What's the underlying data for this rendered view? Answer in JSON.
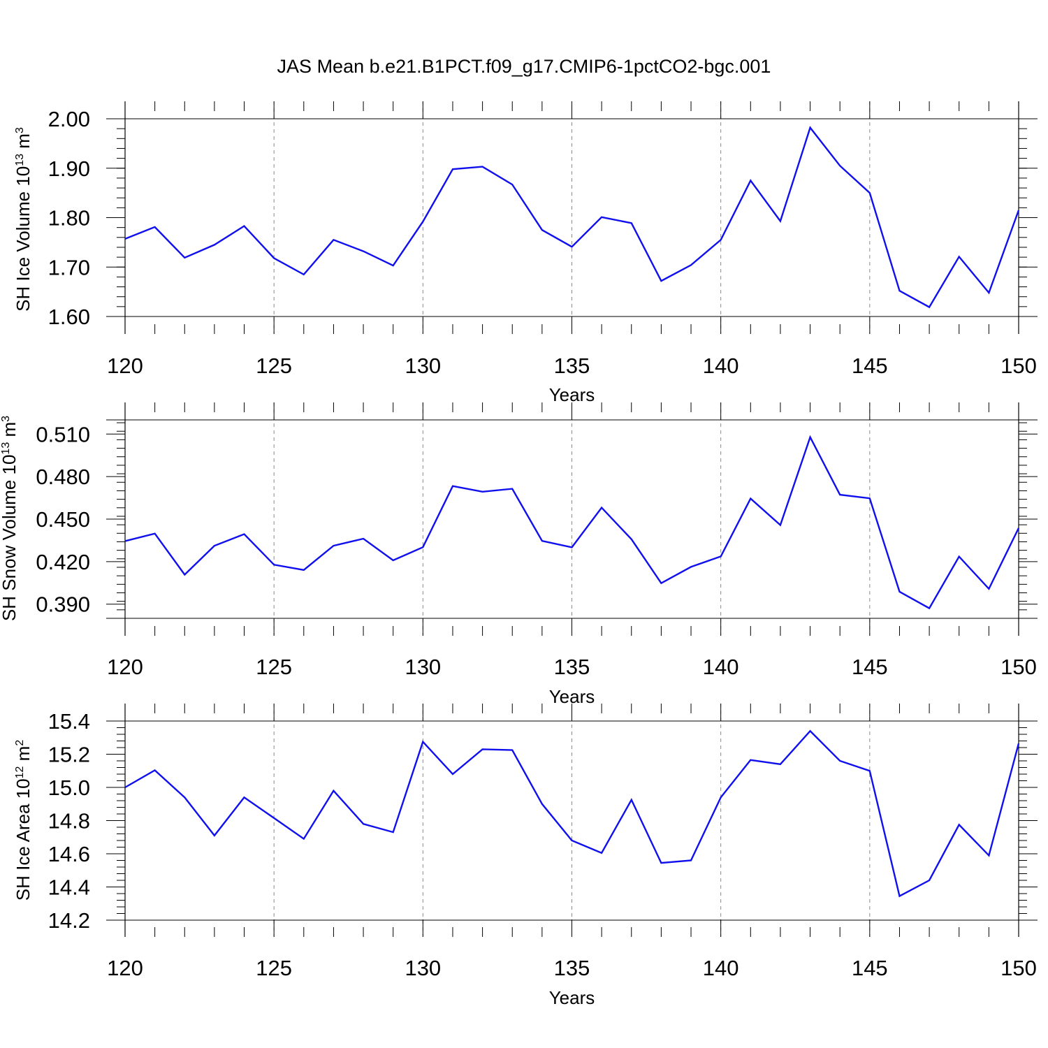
{
  "figure": {
    "title": "JAS Mean b.e21.B1PCT.f09_g17.CMIP6-1pctCO2-bgc.001"
  },
  "colors": {
    "line": "#1010ee",
    "axes": "#000000",
    "vertical_reference_lines": "#888888"
  },
  "chart_data": [
    {
      "type": "line",
      "title": "",
      "xlabel": "Years",
      "ylabel": "SH Ice Volume 10",
      "ylabel_exponent": "13",
      "ylabel_unit": "m",
      "ylabel_unit_exponent": "3",
      "xlim": [
        120,
        150
      ],
      "ylim": [
        1.6,
        2.0
      ],
      "x_ticks": [
        120,
        125,
        130,
        135,
        140,
        145,
        150
      ],
      "x_tick_labels": [
        "120",
        "125",
        "130",
        "135",
        "140",
        "145",
        "150"
      ],
      "y_ticks": [
        1.6,
        1.7,
        1.8,
        1.9,
        2.0
      ],
      "y_tick_labels": [
        "1.60",
        "1.70",
        "1.80",
        "1.90",
        "2.00"
      ],
      "vertical_dashed_lines": [
        125,
        130,
        135,
        140,
        145
      ],
      "series": [
        {
          "x": [
            120,
            121,
            122,
            123,
            124,
            125,
            126,
            127,
            128,
            129,
            130,
            131,
            132,
            133,
            134,
            135,
            136,
            137,
            138,
            139,
            140,
            141,
            142,
            143,
            144,
            145,
            146,
            147,
            148,
            149,
            150
          ],
          "values": [
            1.757,
            1.781,
            1.719,
            1.745,
            1.783,
            1.718,
            1.685,
            1.755,
            1.732,
            1.703,
            1.792,
            1.898,
            1.903,
            1.867,
            1.775,
            1.741,
            1.801,
            1.789,
            1.672,
            1.704,
            1.755,
            1.875,
            1.793,
            1.982,
            1.905,
            1.85,
            1.652,
            1.619,
            1.721,
            1.648,
            1.815
          ]
        }
      ]
    },
    {
      "type": "line",
      "title": "",
      "xlabel": "Years",
      "ylabel": "SH Snow Volume 10",
      "ylabel_exponent": "13",
      "ylabel_unit": "m",
      "ylabel_unit_exponent": "3",
      "xlim": [
        120,
        150
      ],
      "ylim": [
        0.38,
        0.52
      ],
      "x_ticks": [
        120,
        125,
        130,
        135,
        140,
        145,
        150
      ],
      "x_tick_labels": [
        "120",
        "125",
        "130",
        "135",
        "140",
        "145",
        "150"
      ],
      "y_ticks": [
        0.39,
        0.42,
        0.45,
        0.48,
        0.51
      ],
      "y_tick_labels": [
        "0.390",
        "0.420",
        "0.450",
        "0.480",
        "0.510"
      ],
      "vertical_dashed_lines": [
        125,
        130,
        135,
        140,
        145
      ],
      "series": [
        {
          "x": [
            120,
            121,
            122,
            123,
            124,
            125,
            126,
            127,
            128,
            129,
            130,
            131,
            132,
            133,
            134,
            135,
            136,
            137,
            138,
            139,
            140,
            141,
            142,
            143,
            144,
            145,
            146,
            147,
            148,
            149,
            150
          ],
          "values": [
            0.4345,
            0.4398,
            0.4108,
            0.4312,
            0.4394,
            0.4178,
            0.4141,
            0.4312,
            0.4362,
            0.4209,
            0.4302,
            0.4733,
            0.4693,
            0.4714,
            0.4346,
            0.4301,
            0.4581,
            0.4358,
            0.4048,
            0.4163,
            0.4237,
            0.4645,
            0.4458,
            0.5078,
            0.4672,
            0.4647,
            0.3988,
            0.3871,
            0.4236,
            0.4008,
            0.4437
          ]
        }
      ]
    },
    {
      "type": "line",
      "title": "",
      "xlabel": "Years",
      "ylabel": "SH Ice Area 10",
      "ylabel_exponent": "12",
      "ylabel_unit": "m",
      "ylabel_unit_exponent": "2",
      "xlim": [
        120,
        150
      ],
      "ylim": [
        14.2,
        15.4
      ],
      "x_ticks": [
        120,
        125,
        130,
        135,
        140,
        145,
        150
      ],
      "x_tick_labels": [
        "120",
        "125",
        "130",
        "135",
        "140",
        "145",
        "150"
      ],
      "y_ticks": [
        14.2,
        14.4,
        14.6,
        14.8,
        15.0,
        15.2,
        15.4
      ],
      "y_tick_labels": [
        "14.2",
        "14.4",
        "14.6",
        "14.8",
        "15.0",
        "15.2",
        "15.4"
      ],
      "vertical_dashed_lines": [
        125,
        130,
        135,
        140,
        145
      ],
      "series": [
        {
          "x": [
            120,
            121,
            122,
            123,
            124,
            125,
            126,
            127,
            128,
            129,
            130,
            131,
            132,
            133,
            134,
            135,
            136,
            137,
            138,
            139,
            140,
            141,
            142,
            143,
            144,
            145,
            146,
            147,
            148,
            149,
            150
          ],
          "values": [
            15.0,
            15.103,
            14.94,
            14.71,
            14.94,
            14.815,
            14.69,
            14.98,
            14.78,
            14.73,
            15.275,
            15.08,
            15.23,
            15.225,
            14.9,
            14.68,
            14.605,
            14.925,
            14.545,
            14.56,
            14.94,
            15.165,
            15.14,
            15.34,
            15.16,
            15.1,
            14.345,
            14.44,
            14.775,
            14.59,
            15.265
          ]
        }
      ]
    }
  ]
}
